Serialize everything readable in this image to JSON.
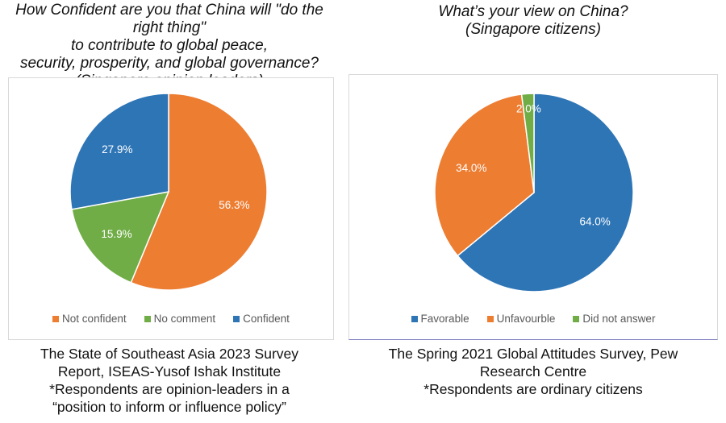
{
  "chart_data": [
    {
      "type": "pie",
      "title": "How Confident are you that China will \"do the right thing\" to contribute to global peace, security, prosperity, and global governance? (Singapore opinion leaders)",
      "title_lines": [
        "How Confident are you that China will \"do the right thing\"",
        "to contribute to global peace,",
        "security, prosperity, and global governance?",
        "(Singapore opinion leaders)"
      ],
      "slices": [
        {
          "name": "Not confident",
          "value": 56.3,
          "label": "56.3%",
          "color": "#ED7D31"
        },
        {
          "name": "No comment",
          "value": 15.9,
          "label": "15.9%",
          "color": "#70AD47"
        },
        {
          "name": "Confident",
          "value": 27.9,
          "label": "27.9%",
          "color": "#2E75B6"
        }
      ],
      "legend_position": "bottom",
      "caption_lines": [
        "The State of Southeast Asia 2023 Survey",
        "Report, ISEAS-Yusof Ishak Institute",
        "*Respondents are opinion-leaders in a",
        "“position to inform or influence policy”"
      ]
    },
    {
      "type": "pie",
      "title": "What’s your view on China? (Singapore citizens)",
      "title_lines": [
        "What’s your view on China?",
        "(Singapore citizens)"
      ],
      "slices": [
        {
          "name": "Favorable",
          "value": 64.0,
          "label": "64.0%",
          "color": "#2E75B6"
        },
        {
          "name": "Unfavourble",
          "value": 34.0,
          "label": "34.0%",
          "color": "#ED7D31"
        },
        {
          "name": "Did not answer",
          "value": 2.0,
          "label": "2.0%",
          "color": "#70AD47"
        }
      ],
      "legend_position": "bottom",
      "caption_lines": [
        "The Spring 2021 Global Attitudes Survey, Pew",
        "Research Centre",
        "*Respondents are ordinary citizens"
      ]
    }
  ]
}
